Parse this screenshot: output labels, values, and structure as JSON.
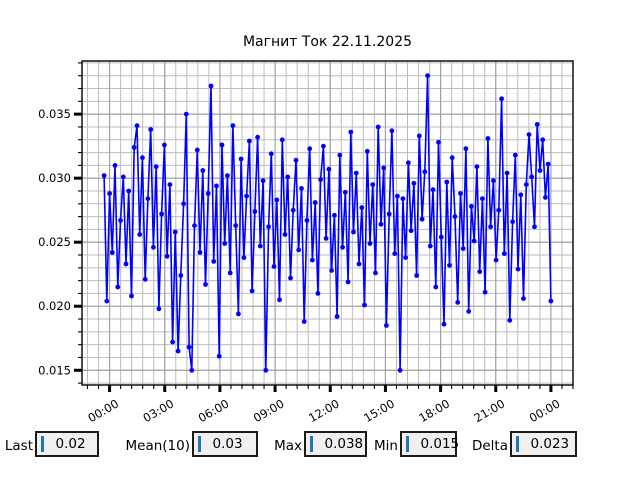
{
  "figure": {
    "background": "#ffffff"
  },
  "chart_data": {
    "type": "line",
    "title": "Магнит Ток 22.11.2025",
    "line_color": "#0000ff",
    "marker": "circle",
    "grid": true,
    "legend_position": "none",
    "x_axis": {
      "tick_labels": [
        "00:00",
        "03:00",
        "06:00",
        "09:00",
        "12:00",
        "15:00",
        "18:00",
        "21:00",
        "00:00"
      ],
      "tick_hours": [
        0,
        3,
        6,
        9,
        12,
        15,
        18,
        21,
        24
      ],
      "minor_step_hours": 0.6,
      "xlim_hours": [
        -1.5,
        25.2
      ]
    },
    "y_axis": {
      "tick_labels": [
        "0.015",
        "0.020",
        "0.025",
        "0.030",
        "0.035"
      ],
      "tick_values": [
        0.015,
        0.02,
        0.025,
        0.03,
        0.035
      ],
      "minor_step": 0.001,
      "ylim": [
        0.01385,
        0.03915
      ]
    },
    "series": [
      {
        "name": "Магнит Ток",
        "x_start_hours": -0.3,
        "x_end_hours": 24.0,
        "values": [
          0.0302,
          0.0204,
          0.0288,
          0.0242,
          0.031,
          0.0215,
          0.0267,
          0.0301,
          0.0233,
          0.029,
          0.0208,
          0.0324,
          0.0341,
          0.0256,
          0.0316,
          0.0221,
          0.0284,
          0.0338,
          0.0246,
          0.0309,
          0.0198,
          0.0272,
          0.0326,
          0.0239,
          0.0295,
          0.0172,
          0.0258,
          0.0165,
          0.0224,
          0.028,
          0.035,
          0.0168,
          0.015,
          0.0263,
          0.0322,
          0.0242,
          0.0306,
          0.0217,
          0.0288,
          0.0372,
          0.0235,
          0.0294,
          0.0161,
          0.0326,
          0.0249,
          0.0302,
          0.0226,
          0.0341,
          0.0263,
          0.0194,
          0.0315,
          0.0238,
          0.0286,
          0.0329,
          0.0212,
          0.0274,
          0.0332,
          0.0247,
          0.0298,
          0.015,
          0.0262,
          0.0319,
          0.0231,
          0.0283,
          0.0205,
          0.033,
          0.0256,
          0.0301,
          0.0222,
          0.0275,
          0.0314,
          0.0244,
          0.0292,
          0.0188,
          0.0267,
          0.0323,
          0.0236,
          0.0281,
          0.021,
          0.0299,
          0.0325,
          0.0253,
          0.0307,
          0.0228,
          0.0271,
          0.0192,
          0.0318,
          0.0246,
          0.0289,
          0.0219,
          0.0336,
          0.0258,
          0.0304,
          0.0233,
          0.0277,
          0.0201,
          0.0321,
          0.0249,
          0.0295,
          0.0226,
          0.034,
          0.0264,
          0.0308,
          0.0185,
          0.0272,
          0.0337,
          0.0241,
          0.0286,
          0.015,
          0.0284,
          0.0238,
          0.0312,
          0.0259,
          0.0296,
          0.0224,
          0.0333,
          0.0268,
          0.0305,
          0.038,
          0.0247,
          0.0291,
          0.0215,
          0.0328,
          0.0254,
          0.0186,
          0.0297,
          0.0232,
          0.0316,
          0.027,
          0.0203,
          0.0288,
          0.0245,
          0.0323,
          0.0196,
          0.0278,
          0.0251,
          0.0309,
          0.0227,
          0.0284,
          0.0211,
          0.0331,
          0.0262,
          0.0298,
          0.0236,
          0.0275,
          0.0362,
          0.0241,
          0.0304,
          0.0189,
          0.0266,
          0.0318,
          0.0229,
          0.0287,
          0.0206,
          0.0295,
          0.0334,
          0.0301,
          0.0262,
          0.0342,
          0.0306,
          0.033,
          0.0285,
          0.0311,
          0.0204
        ]
      }
    ]
  },
  "stats": {
    "caret_color": "#1f77b4",
    "box_background": "#f0f0f0",
    "items": [
      {
        "label": "Last",
        "value": "0.02"
      },
      {
        "label": "Mean(10)",
        "value": "0.03"
      },
      {
        "label": "Max",
        "value": "0.038"
      },
      {
        "label": "Min",
        "value": "0.015"
      },
      {
        "label": "Delta",
        "value": "0.023"
      }
    ]
  }
}
